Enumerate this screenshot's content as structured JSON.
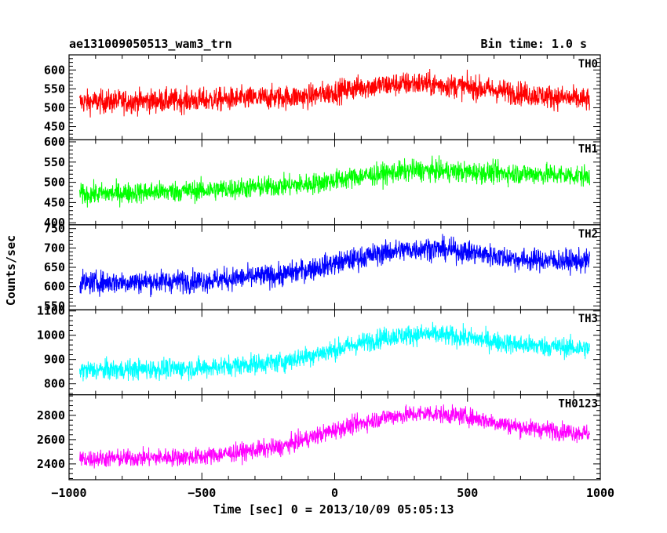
{
  "header": {
    "title": "ae131009050513_wam3_trn",
    "bin_time": "Bin time: 1.0 s"
  },
  "axes": {
    "xlabel": "Time [sec] 0 = 2013/10/09 05:05:13",
    "ylabel": "Counts/sec"
  },
  "chart_data": {
    "type": "line",
    "title": "ae131009050513_wam3_trn",
    "subtitle": "Bin time: 1.0 s",
    "xlabel": "Time [sec] 0 = 2013/10/09 05:05:13",
    "ylabel": "Counts/sec",
    "xlim": [
      -1000,
      1000
    ],
    "xticks": [
      -1000,
      -500,
      0,
      500,
      1000
    ],
    "xtick_labels": [
      "−1000",
      "−500",
      "0",
      "500",
      "1000"
    ],
    "time_range": [
      -960,
      960
    ],
    "bin_time_s": 1.0,
    "grid": false,
    "panels": [
      {
        "name": "TH0",
        "color": "#ff0000",
        "ylim": [
          415,
          640
        ],
        "yticks": [
          450,
          500,
          550,
          600
        ],
        "trend": {
          "x": [
            -960,
            -500,
            -100,
            100,
            300,
            500,
            800,
            960
          ],
          "y": [
            515,
            520,
            530,
            555,
            565,
            555,
            530,
            520
          ]
        },
        "noise_amplitude": 30
      },
      {
        "name": "TH1",
        "color": "#00ff00",
        "ylim": [
          395,
          605
        ],
        "yticks": [
          400,
          450,
          500,
          550,
          600
        ],
        "trend": {
          "x": [
            -960,
            -500,
            -100,
            100,
            300,
            500,
            800,
            960
          ],
          "y": [
            470,
            480,
            495,
            515,
            530,
            525,
            520,
            515
          ]
        },
        "noise_amplitude": 25
      },
      {
        "name": "TH2",
        "color": "#0000ff",
        "ylim": [
          540,
          760
        ],
        "yticks": [
          550,
          600,
          650,
          700,
          750
        ],
        "trend": {
          "x": [
            -960,
            -500,
            -200,
            0,
            200,
            350,
            500,
            700,
            960
          ],
          "y": [
            610,
            615,
            630,
            660,
            690,
            700,
            690,
            670,
            665
          ]
        },
        "noise_amplitude": 28
      },
      {
        "name": "TH3",
        "color": "#00ffff",
        "ylim": [
          755,
          1105
        ],
        "yticks": [
          800,
          900,
          1000,
          1100
        ],
        "trend": {
          "x": [
            -960,
            -500,
            -200,
            0,
            200,
            350,
            500,
            700,
            960
          ],
          "y": [
            855,
            865,
            890,
            940,
            995,
            1005,
            990,
            960,
            945
          ]
        },
        "noise_amplitude": 40
      },
      {
        "name": "TH0123",
        "color": "#ff00ff",
        "ylim": [
          2270,
          2970
        ],
        "yticks": [
          2400,
          2600,
          2800
        ],
        "trend": {
          "x": [
            -960,
            -500,
            -200,
            0,
            200,
            350,
            500,
            700,
            960
          ],
          "y": [
            2440,
            2460,
            2540,
            2680,
            2790,
            2820,
            2790,
            2700,
            2650
          ]
        },
        "noise_amplitude": 70
      }
    ]
  }
}
